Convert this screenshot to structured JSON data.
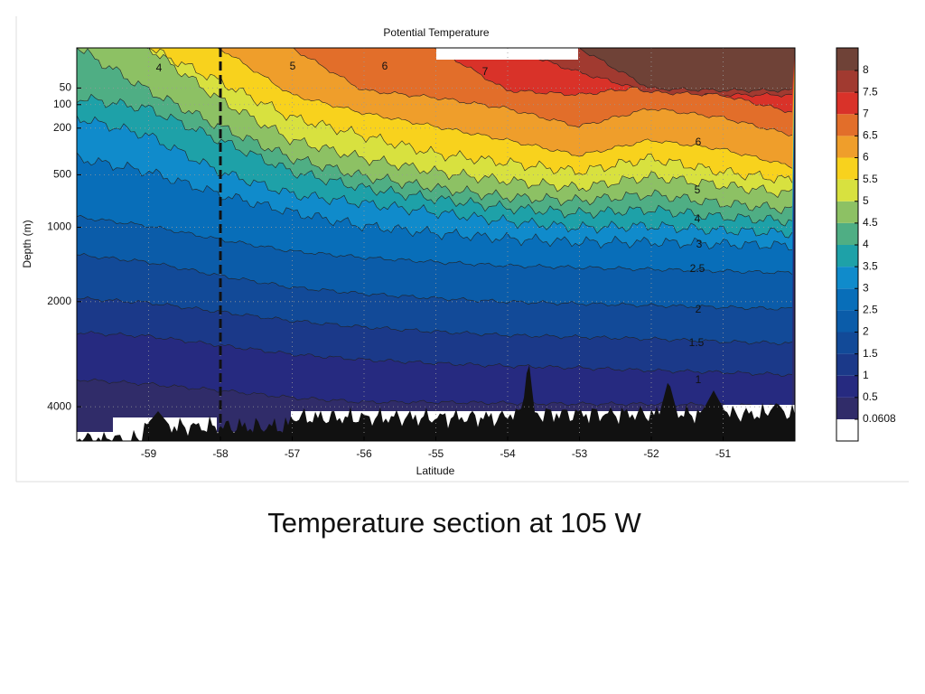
{
  "chart_data": {
    "type": "contour",
    "title": "Potential Temperature",
    "xlabel": "Latitude",
    "ylabel": "Depth (m)",
    "xlim": [
      -60,
      -50
    ],
    "xticks": [
      -59,
      -58,
      -57,
      -56,
      -55,
      -54,
      -53,
      -52,
      -51
    ],
    "ylim": [
      0,
      4800
    ],
    "yticks": [
      50,
      100,
      200,
      500,
      1000,
      2000,
      4000
    ],
    "yscale": "sqrt",
    "yinverted": true,
    "grid": true,
    "levels": [
      0.0608,
      0.5,
      1,
      1.5,
      2,
      2.5,
      3,
      3.5,
      4,
      4.5,
      5,
      5.5,
      6,
      6.5,
      7,
      7.5,
      8
    ],
    "colors": [
      "#ffffff",
      "#302c69",
      "#262a80",
      "#1b3989",
      "#124a98",
      "#0b5ca9",
      "#086eb9",
      "#108bcb",
      "#1ea1a8",
      "#4fae84",
      "#8dc164",
      "#d8e13f",
      "#f8d21d",
      "#ef9e2b",
      "#e26e2a",
      "#d93229",
      "#a13a30",
      "#6f4237"
    ],
    "vline": -58,
    "contour_labels": [
      4,
      5,
      6,
      7,
      6,
      5,
      4,
      3,
      2.5,
      2,
      1.5,
      1
    ]
  },
  "caption": "Temperature section at 105 W"
}
